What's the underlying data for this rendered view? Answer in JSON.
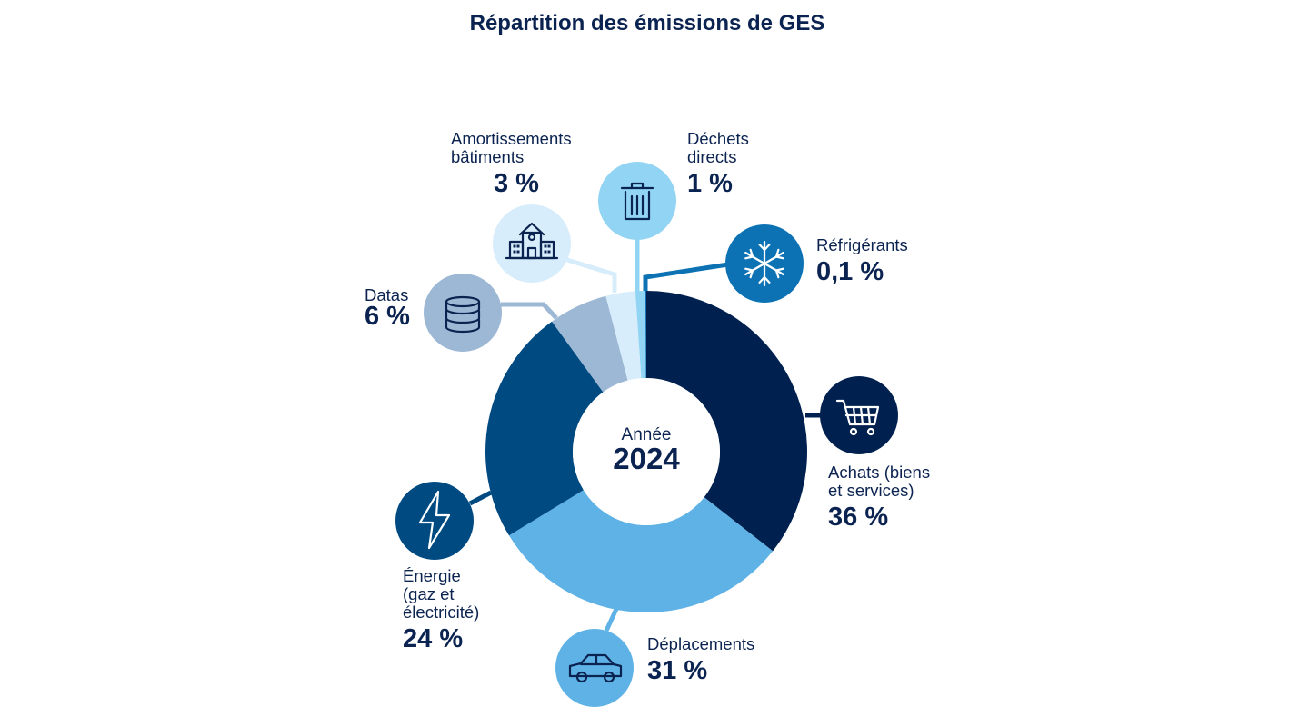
{
  "title": "Répartition des émissions de GES",
  "center": {
    "label": "Année",
    "year": "2024"
  },
  "chart_data": {
    "type": "donut",
    "title": "Répartition des émissions de GES",
    "unit": "%",
    "slices": [
      {
        "key": "achats",
        "name": "Achats (biens et services)",
        "name_lines": [
          "Achats (biens",
          "et services)"
        ],
        "value": 36,
        "display": "36 %",
        "color": "#002150",
        "icon": "shopping-cart-icon"
      },
      {
        "key": "deplacements",
        "name": "Déplacements",
        "name_lines": [
          "Déplacements"
        ],
        "value": 31,
        "display": "31 %",
        "color": "#5fb2e6",
        "icon": "car-icon"
      },
      {
        "key": "energie",
        "name": "Énergie (gaz et électricité)",
        "name_lines": [
          "Énergie",
          "(gaz et",
          "électricité)"
        ],
        "value": 24,
        "display": "24 %",
        "color": "#004a82",
        "icon": "lightning-bolt-icon"
      },
      {
        "key": "datas",
        "name": "Datas",
        "name_lines": [
          "Datas"
        ],
        "value": 6,
        "display": "6 %",
        "color": "#9db8d5",
        "icon": "database-icon"
      },
      {
        "key": "amortissements",
        "name": "Amortissements bâtiments",
        "name_lines": [
          "Amortissements",
          "bâtiments"
        ],
        "value": 3,
        "display": "3 %",
        "color": "#d7edfb",
        "icon": "building-icon"
      },
      {
        "key": "dechets",
        "name": "Déchets directs",
        "name_lines": [
          "Déchets",
          "directs"
        ],
        "value": 1,
        "display": "1 %",
        "color": "#92d4f4",
        "icon": "trash-can-icon"
      },
      {
        "key": "refrigerants",
        "name": "Réfrigérants",
        "name_lines": [
          "Réfrigérants"
        ],
        "value": 0.1,
        "display": "0,1 %",
        "color": "#0d72b4",
        "icon": "snowflake-icon"
      }
    ]
  }
}
